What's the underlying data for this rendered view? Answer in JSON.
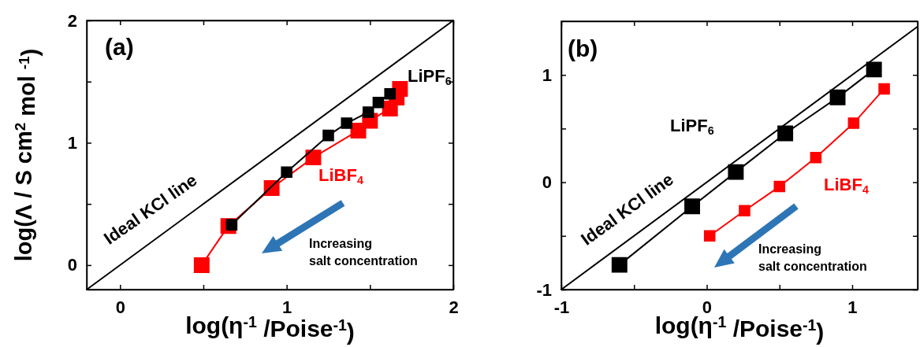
{
  "chart_data": [
    {
      "type": "scatter",
      "xlabel": "log(η$^{-1}$ /Poise$^{-1}$)",
      "ylabel": "log(Λ / S cm$^{2}$ mol $^{-1}$)",
      "annotations": [
        "(a)",
        "Increasing\nsalt concentration"
      ],
      "marker": "square",
      "line_style": "solid",
      "xlim": [
        -0.2,
        2
      ],
      "ylim": [
        -0.2,
        2
      ],
      "xticks": [
        0,
        {
          "value": 0.5,
          "label": null
        },
        1,
        {
          "value": 1.5,
          "label": null
        },
        2
      ],
      "yticks": [
        0,
        {
          "value": 0.5,
          "label": null
        },
        1,
        {
          "value": 1.5,
          "label": null
        },
        2
      ],
      "series": [
        {
          "name": "Ideal KCl line",
          "type": "line",
          "marker": "none",
          "color": "#000000",
          "x": [
            -0.2,
            2
          ],
          "values": [
            -0.2,
            2
          ]
        },
        {
          "name": "LiBF$_{4}$",
          "type": "line",
          "color": "#ff0000",
          "x": [
            0.49,
            0.65,
            0.91,
            1.16,
            1.43,
            1.5,
            1.62,
            1.66,
            1.68
          ],
          "values": [
            0.0,
            0.32,
            0.63,
            0.88,
            1.1,
            1.18,
            1.28,
            1.37,
            1.44
          ]
        },
        {
          "name": "LiPF$_{6}$",
          "type": "line",
          "color": "#000000",
          "x": [
            0.67,
            1.0,
            1.25,
            1.36,
            1.49,
            1.55,
            1.62
          ],
          "values": [
            0.33,
            0.76,
            1.06,
            1.16,
            1.25,
            1.33,
            1.4
          ]
        }
      ]
    },
    {
      "type": "scatter",
      "xlabel": "log(η$^{-1}$ /Poise$^{-1}$)",
      "annotations": [
        "(b)",
        "Increasing\nsalt concentration"
      ],
      "marker": "square",
      "line_style": "solid",
      "xlim": [
        -1,
        1.45
      ],
      "ylim": [
        -1,
        1.5
      ],
      "xticks": [
        -1,
        {
          "value": -0.5,
          "label": null
        },
        0,
        {
          "value": 0.5,
          "label": null
        },
        1
      ],
      "yticks": [
        -1,
        {
          "value": -0.5,
          "label": null
        },
        0,
        {
          "value": 0.5,
          "label": null
        },
        1
      ],
      "series": [
        {
          "name": "Ideal KCl line",
          "type": "line",
          "marker": "none",
          "color": "#000000",
          "x": [
            -1,
            1.45
          ],
          "values": [
            -1,
            1.45
          ]
        },
        {
          "name": "LiPF$_{6}$",
          "type": "line",
          "color": "#000000",
          "x": [
            -0.6,
            -0.1,
            0.2,
            0.54,
            0.9,
            1.15
          ],
          "values": [
            -0.77,
            -0.225,
            0.095,
            0.455,
            0.79,
            1.05
          ]
        },
        {
          "name": "LiBF$_{4}$",
          "type": "line",
          "color": "#ff0000",
          "x": [
            0.02,
            0.26,
            0.5,
            0.75,
            1.01,
            1.22
          ],
          "values": [
            -0.5,
            -0.265,
            -0.04,
            0.23,
            0.55,
            0.87
          ]
        }
      ]
    }
  ]
}
